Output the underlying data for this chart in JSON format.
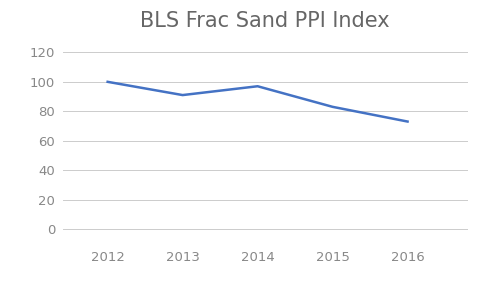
{
  "title": "BLS Frac Sand PPI Index",
  "x": [
    2012,
    2013,
    2014,
    2015,
    2016
  ],
  "y": [
    100,
    91,
    97,
    83,
    73
  ],
  "line_color": "#4472C4",
  "line_width": 1.8,
  "background_color": "#ffffff",
  "grid_color": "#cccccc",
  "yticks": [
    0,
    20,
    40,
    60,
    80,
    100,
    120
  ],
  "ylim": [
    -8,
    130
  ],
  "xlim": [
    2011.4,
    2016.8
  ],
  "xticks": [
    2012,
    2013,
    2014,
    2015,
    2016
  ],
  "title_fontsize": 15,
  "tick_fontsize": 9.5,
  "tick_color": "#888888",
  "title_color": "#666666"
}
